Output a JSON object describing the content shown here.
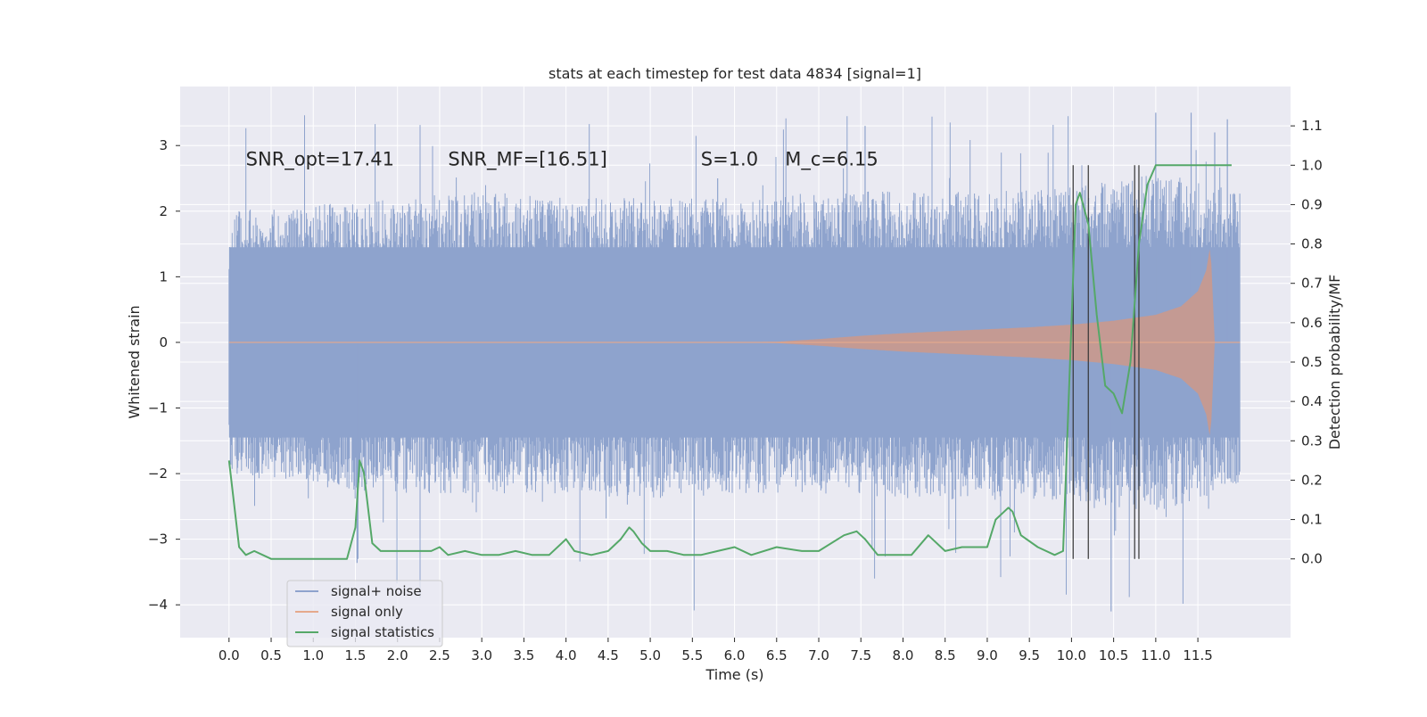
{
  "chart_data": {
    "type": "line",
    "title": "stats at each timestep for test data 4834 [signal=1]",
    "xlabel": "Time (s)",
    "ylabel_left": "Whitened strain",
    "ylabel_right": "Detection probability/MF",
    "xlim": [
      -0.58,
      12.6
    ],
    "ylim_left": [
      -4.5,
      3.9
    ],
    "ylim_right": [
      -0.2,
      1.2
    ],
    "x_ticks": [
      0.0,
      0.5,
      1.0,
      1.5,
      2.0,
      2.5,
      3.0,
      3.5,
      4.0,
      4.5,
      5.0,
      5.5,
      6.0,
      6.5,
      7.0,
      7.5,
      8.0,
      8.5,
      9.0,
      9.5,
      10.0,
      10.5,
      11.0,
      11.5
    ],
    "x_tick_labels": [
      "0.0",
      "0.5",
      "1.0",
      "1.5",
      "2.0",
      "2.5",
      "3.0",
      "3.5",
      "4.0",
      "4.5",
      "5.0",
      "5.5",
      "6.0",
      "6.5",
      "7.0",
      "7.5",
      "8.0",
      "8.5",
      "9.0",
      "9.5",
      "10.0",
      "10.5",
      "11.0",
      "11.5"
    ],
    "y_left_ticks": [
      -4,
      -3,
      -2,
      -1,
      0,
      1,
      2,
      3
    ],
    "y_left_tick_labels": [
      "−4",
      "−3",
      "−2",
      "−1",
      "0",
      "1",
      "2",
      "3"
    ],
    "y_right_ticks": [
      0.0,
      0.1,
      0.2,
      0.3,
      0.4,
      0.5,
      0.6,
      0.7,
      0.8,
      0.9,
      1.0,
      1.1
    ],
    "y_right_tick_labels": [
      "0.0",
      "0.1",
      "0.2",
      "0.3",
      "0.4",
      "0.5",
      "0.6",
      "0.7",
      "0.8",
      "0.9",
      "1.0",
      "1.1"
    ],
    "grid": true,
    "legend_position": "lower-left",
    "annotations": [
      {
        "text": "SNR_opt=17.41",
        "x": 0.2,
        "y": 2.7
      },
      {
        "text": "SNR_MF=[16.51]",
        "x": 2.6,
        "y": 2.7
      },
      {
        "text": "S=1.0",
        "x": 5.6,
        "y": 2.7
      },
      {
        "text": "M_c=6.15",
        "x": 6.6,
        "y": 2.7
      }
    ],
    "vlines_x": [
      10.02,
      10.2,
      10.75,
      10.8
    ],
    "vlines_range_right": [
      0.0,
      1.0
    ],
    "series": [
      {
        "name": "signal+ noise",
        "color": "#8ea3cd",
        "axis": "left",
        "kind": "noisy-envelope",
        "x_start": 0.0,
        "x_end": 12.0,
        "envelope_x": [
          0,
          1,
          2,
          3,
          4,
          5,
          6,
          7,
          8,
          9,
          10,
          11,
          12
        ],
        "envelope_lower": [
          -2.0,
          -2.2,
          -2.3,
          -2.3,
          -2.3,
          -2.4,
          -2.3,
          -2.3,
          -2.4,
          -2.4,
          -2.4,
          -2.6,
          -2.2
        ],
        "envelope_upper": [
          2.0,
          2.1,
          2.2,
          2.3,
          2.2,
          2.2,
          2.2,
          2.3,
          2.3,
          2.3,
          2.4,
          2.6,
          2.3
        ],
        "extreme_max": 3.5,
        "extreme_min": -4.1
      },
      {
        "name": "signal only",
        "color": "#dd8452",
        "axis": "left",
        "kind": "chirp-envelope",
        "x": [
          0.0,
          6.0,
          6.5,
          7.0,
          7.5,
          8.0,
          8.5,
          9.0,
          9.5,
          10.0,
          10.5,
          11.0,
          11.3,
          11.5,
          11.6,
          11.65,
          11.7,
          12.0
        ],
        "amplitude": [
          0.0,
          0.0,
          0.01,
          0.05,
          0.1,
          0.14,
          0.17,
          0.2,
          0.23,
          0.27,
          0.33,
          0.42,
          0.55,
          0.78,
          1.1,
          1.5,
          0.0,
          0.0
        ]
      },
      {
        "name": "signal statistics",
        "color": "#55a868",
        "axis": "right",
        "x": [
          0.0,
          0.12,
          0.2,
          0.3,
          0.4,
          0.5,
          0.6,
          0.8,
          1.0,
          1.2,
          1.4,
          1.5,
          1.55,
          1.6,
          1.7,
          1.8,
          1.9,
          2.0,
          2.2,
          2.4,
          2.5,
          2.6,
          2.8,
          3.0,
          3.2,
          3.4,
          3.6,
          3.8,
          4.0,
          4.1,
          4.3,
          4.5,
          4.65,
          4.75,
          4.8,
          4.9,
          5.0,
          5.2,
          5.4,
          5.6,
          5.8,
          6.0,
          6.2,
          6.5,
          6.8,
          7.0,
          7.3,
          7.45,
          7.5,
          7.55,
          7.7,
          7.9,
          8.1,
          8.3,
          8.5,
          8.7,
          9.0,
          9.1,
          9.25,
          9.3,
          9.4,
          9.6,
          9.8,
          9.9,
          10.0,
          10.05,
          10.1,
          10.2,
          10.3,
          10.4,
          10.5,
          10.6,
          10.7,
          10.8,
          10.9,
          11.0,
          11.2,
          11.5,
          11.9
        ],
        "values": [
          0.25,
          0.03,
          0.01,
          0.02,
          0.01,
          0.0,
          0.0,
          0.0,
          0.0,
          0.0,
          0.0,
          0.08,
          0.25,
          0.22,
          0.04,
          0.02,
          0.02,
          0.02,
          0.02,
          0.02,
          0.03,
          0.01,
          0.02,
          0.01,
          0.01,
          0.02,
          0.01,
          0.01,
          0.05,
          0.02,
          0.01,
          0.02,
          0.05,
          0.08,
          0.07,
          0.04,
          0.02,
          0.02,
          0.01,
          0.01,
          0.02,
          0.03,
          0.01,
          0.03,
          0.02,
          0.02,
          0.06,
          0.07,
          0.06,
          0.05,
          0.01,
          0.01,
          0.01,
          0.06,
          0.02,
          0.03,
          0.03,
          0.1,
          0.13,
          0.12,
          0.06,
          0.03,
          0.01,
          0.02,
          0.6,
          0.9,
          0.93,
          0.85,
          0.62,
          0.44,
          0.42,
          0.37,
          0.5,
          0.8,
          0.95,
          1.0,
          1.0,
          1.0,
          1.0
        ]
      }
    ]
  },
  "legend": {
    "items": [
      {
        "label": "signal+ noise",
        "color": "#8ea3cd"
      },
      {
        "label": "signal only",
        "color": "#e5a98c"
      },
      {
        "label": "signal statistics",
        "color": "#55a868"
      }
    ]
  }
}
